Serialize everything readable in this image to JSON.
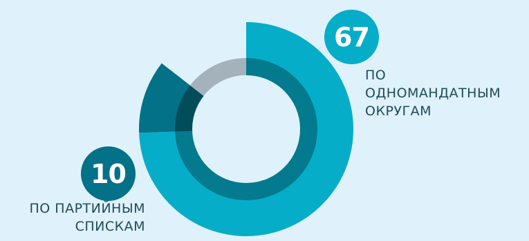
{
  "chart_data": {
    "type": "pie",
    "categories": [
      "ПО ОДНОМАНДАТНЫМ ОКРУГАМ",
      "ПО ПАРТИЙНЫМ СПИСКАМ"
    ],
    "values": [
      67,
      10
    ],
    "total_slots": 90,
    "colors": {
      "outer_big": "#06adc9",
      "outer_small": "#037187",
      "inner_big": "#037a8e",
      "inner_small": "#024d5a",
      "inner_rest": "#a4b3bb",
      "background": "#dff1fa",
      "label_text": "#1e4b5a",
      "badge_big": "#06adc9",
      "badge_small": "#037187"
    }
  },
  "badges": {
    "big": "67",
    "small": "10"
  },
  "labels": {
    "big": [
      "ПО",
      "ОДНОМАНДАТНЫМ",
      "ОКРУГАМ"
    ],
    "small": [
      "ПО ПАРТИЙНЫМ",
      "СПИСКАМ"
    ]
  }
}
